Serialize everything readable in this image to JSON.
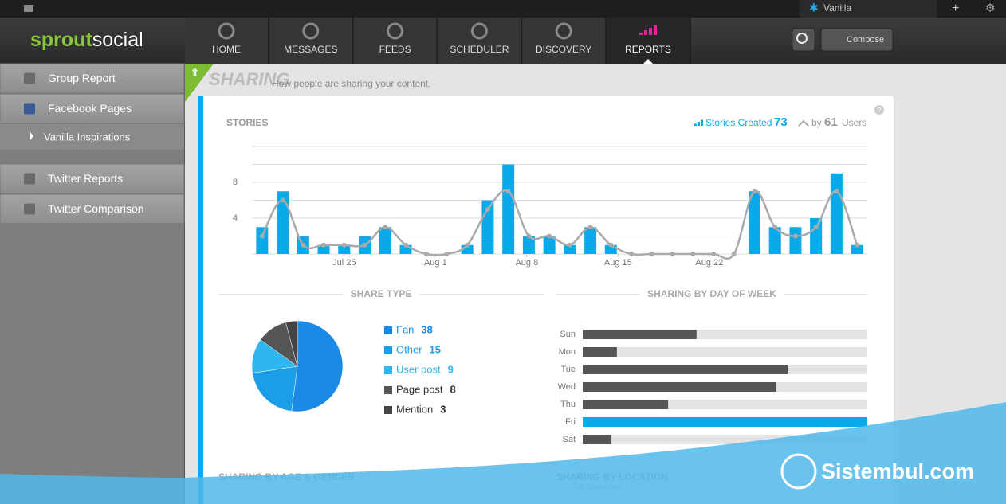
{
  "topbar": {
    "account": "Vanilla"
  },
  "nav": {
    "logo_a": "sprout",
    "logo_b": "social",
    "items": [
      "HOME",
      "MESSAGES",
      "FEEDS",
      "SCHEDULER",
      "DISCOVERY",
      "REPORTS"
    ],
    "active": 5,
    "compose": "Compose"
  },
  "sidebar": {
    "items": [
      "Group Report",
      "Facebook Pages",
      "Vanilla Inspirations",
      "Twitter Reports",
      "Twitter Comparison"
    ]
  },
  "page": {
    "title": "SHARING",
    "subtitle": "How people are sharing your content."
  },
  "chart_data": [
    {
      "type": "bar",
      "title": "STORIES",
      "total": 73,
      "users_prefix": "by",
      "users": 61,
      "x": [
        0,
        1,
        2,
        3,
        4,
        5,
        6,
        7,
        8,
        9,
        10,
        11,
        12,
        13,
        14,
        15,
        16,
        17,
        18,
        19,
        20,
        21,
        22,
        23,
        24,
        25,
        26,
        27,
        28,
        29
      ],
      "xlim": [
        -0.5,
        29.5
      ],
      "xticks": [
        {
          "value": 4,
          "label": "Jul 25"
        },
        {
          "value": 8.45,
          "label": "Aug 1"
        },
        {
          "value": 12.9,
          "label": "Aug 8"
        },
        {
          "value": 17.35,
          "label": "Aug 15"
        },
        {
          "value": 21.8,
          "label": "Aug 22"
        }
      ],
      "ylim": [
        0,
        12
      ],
      "yticks": [
        4,
        8
      ],
      "minor_yticks": [
        0,
        2,
        6,
        10,
        12
      ],
      "grid": true,
      "series": [
        {
          "name": "Stories Created",
          "color": "#0aa9ea",
          "values": [
            3,
            7,
            2,
            1,
            1,
            2,
            3,
            1,
            0,
            0,
            1,
            6,
            10,
            2,
            2,
            1,
            3,
            1,
            0,
            0,
            0,
            0,
            0,
            0,
            7,
            3,
            3,
            4,
            9,
            1
          ]
        },
        {
          "name": "Users",
          "color": "#aaaaaa",
          "values": [
            2,
            6,
            1,
            1,
            1,
            1,
            3,
            1,
            0,
            0,
            1,
            5,
            7,
            2,
            2,
            1,
            3,
            1,
            0,
            0,
            0,
            0,
            0,
            0,
            7,
            3,
            2,
            3,
            7,
            1
          ]
        }
      ]
    },
    {
      "type": "pie",
      "title": "SHARE TYPE",
      "categories": [
        "Fan",
        "Other",
        "User post",
        "Page post",
        "Mention"
      ],
      "values": [
        38,
        15,
        9,
        8,
        3
      ],
      "colors": [
        "#1a8ae6",
        "#1b9de8",
        "#2fb6ee",
        "#555555",
        "#444444"
      ]
    },
    {
      "type": "hbar",
      "title": "SHARING BY DAY OF WEEK",
      "categories": [
        "Sun",
        "Mon",
        "Tue",
        "Wed",
        "Thu",
        "Fri",
        "Sat"
      ],
      "values": [
        4,
        1.2,
        7.2,
        6.8,
        3,
        10,
        1
      ],
      "xlim": [
        0,
        10
      ],
      "colors": [
        "#555555",
        "#555555",
        "#555555",
        "#555555",
        "#555555",
        "#0aa9ea",
        "#555555"
      ]
    }
  ],
  "sections": [
    "SHARING BY AGE & GENDER",
    "SHARING BY LOCATION"
  ],
  "location_sub": "Top Countries",
  "watermark": "Sistembul.com"
}
